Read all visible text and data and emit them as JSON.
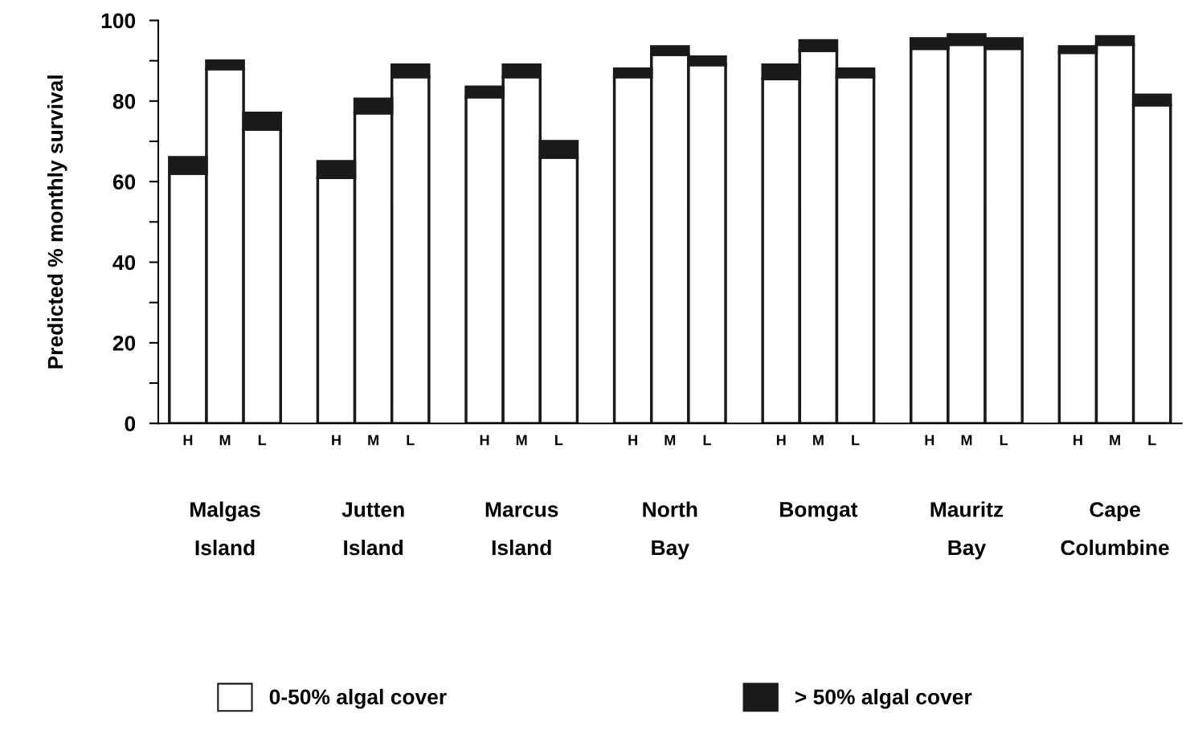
{
  "chart_data": {
    "type": "bar",
    "stacked": true,
    "ylabel": "Predicted % monthly survival",
    "categories": [
      "H",
      "M",
      "L",
      null,
      "H",
      "M",
      "L",
      null,
      "H",
      "M",
      "L",
      null,
      "H",
      "M",
      "L",
      null,
      "H",
      "M",
      "L",
      null,
      "H",
      "M",
      "L",
      null,
      "H",
      "M",
      "L"
    ],
    "series": [
      {
        "name": "0-50% algal cover",
        "color": "#ffffff",
        "values": [
          62,
          88,
          73,
          null,
          61,
          77,
          86,
          null,
          81,
          86,
          66,
          null,
          86,
          91.5,
          89,
          null,
          85.5,
          92.5,
          86,
          null,
          93,
          94,
          93,
          null,
          92,
          94,
          79
        ]
      },
      {
        "name": "> 50% algal cover",
        "color": "#1a1a1a",
        "values": [
          4,
          2,
          4,
          null,
          4,
          3.5,
          3,
          null,
          2.5,
          3,
          4,
          null,
          2,
          2,
          2,
          null,
          3.5,
          2.5,
          2,
          null,
          2.5,
          2.5,
          2.5,
          null,
          1.5,
          2,
          2.5
        ]
      }
    ],
    "ylim": [
      0,
      100
    ],
    "yticks": [
      0,
      {
        "value": 10,
        "label": null
      },
      20,
      {
        "value": 30,
        "label": null
      },
      40,
      {
        "value": 50,
        "label": null
      },
      60,
      {
        "value": 70,
        "label": null
      },
      80,
      {
        "value": 90,
        "label": null
      },
      100
    ],
    "annotations": [
      "Malgas\nIsland",
      "Jutten\nIsland",
      "Marcus\nIsland",
      "North\nBay",
      "Bomgat",
      "Mauritz\nBay",
      "Cape\nColumbine"
    ],
    "legend": "bottom",
    "grid": false
  }
}
